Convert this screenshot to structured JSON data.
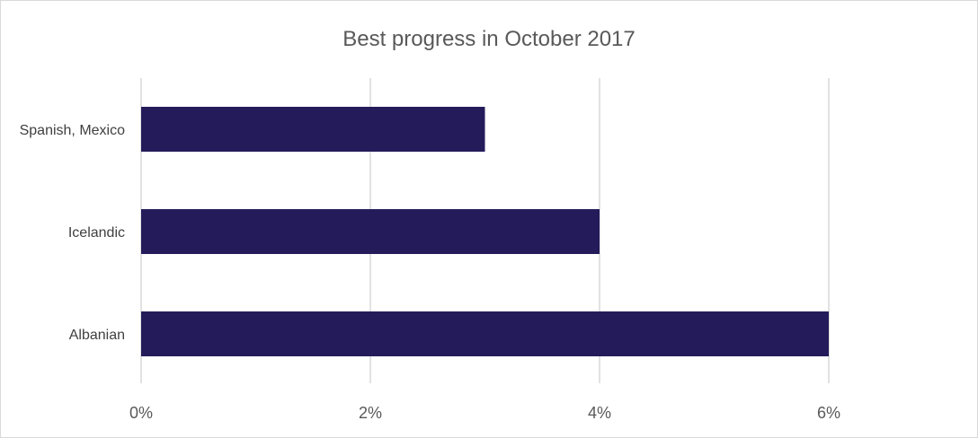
{
  "chart_data": {
    "type": "bar",
    "orientation": "horizontal",
    "title": "Best progress in October 2017",
    "categories": [
      "Spanish, Mexico",
      "Icelandic",
      "Albanian"
    ],
    "values": [
      3,
      4,
      6
    ],
    "xlim": [
      0,
      7
    ],
    "ticks": [
      0,
      2,
      4,
      6
    ],
    "tick_labels": [
      "0%",
      "2%",
      "4%",
      "6%"
    ],
    "xlabel": "",
    "ylabel": "",
    "grid": true,
    "legend": "none",
    "colors": {
      "bar": "#241c5a",
      "grid": "#d9d9d9",
      "title": "#595959",
      "label": "#404040"
    }
  }
}
